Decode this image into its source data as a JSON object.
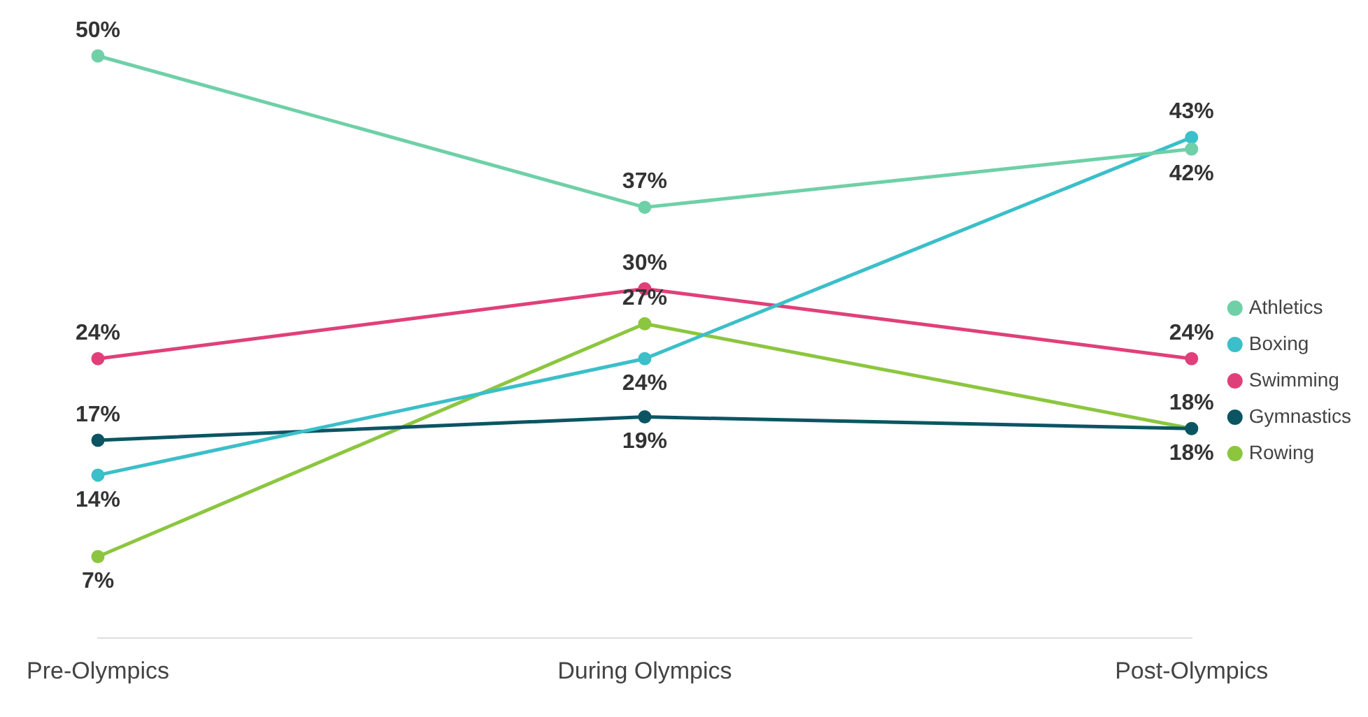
{
  "chart_data": {
    "type": "line",
    "categories": [
      "Pre-Olympics",
      "During Olympics",
      "Post-Olympics"
    ],
    "series": [
      {
        "name": "Athletics",
        "color": "#6fd0a8",
        "values": [
          50,
          37,
          42
        ],
        "value_labels": [
          "50%",
          "37%",
          "42%"
        ]
      },
      {
        "name": "Boxing",
        "color": "#3bbfc9",
        "values": [
          14,
          24,
          43
        ],
        "value_labels": [
          "14%",
          "24%",
          "43%"
        ]
      },
      {
        "name": "Swimming",
        "color": "#e0407a",
        "values": [
          24,
          30,
          24
        ],
        "value_labels": [
          "24%",
          "30%",
          "24%"
        ]
      },
      {
        "name": "Gymnastics",
        "color": "#0b5563",
        "values": [
          17,
          19,
          18
        ],
        "value_labels": [
          "17%",
          "19%",
          "18%"
        ]
      },
      {
        "name": "Rowing",
        "color": "#8cc63f",
        "values": [
          7,
          27,
          18
        ],
        "value_labels": [
          "7%",
          "27%",
          "18%"
        ]
      }
    ],
    "legend": "right",
    "grid": false,
    "marker": "circle",
    "line_style": "solid"
  }
}
